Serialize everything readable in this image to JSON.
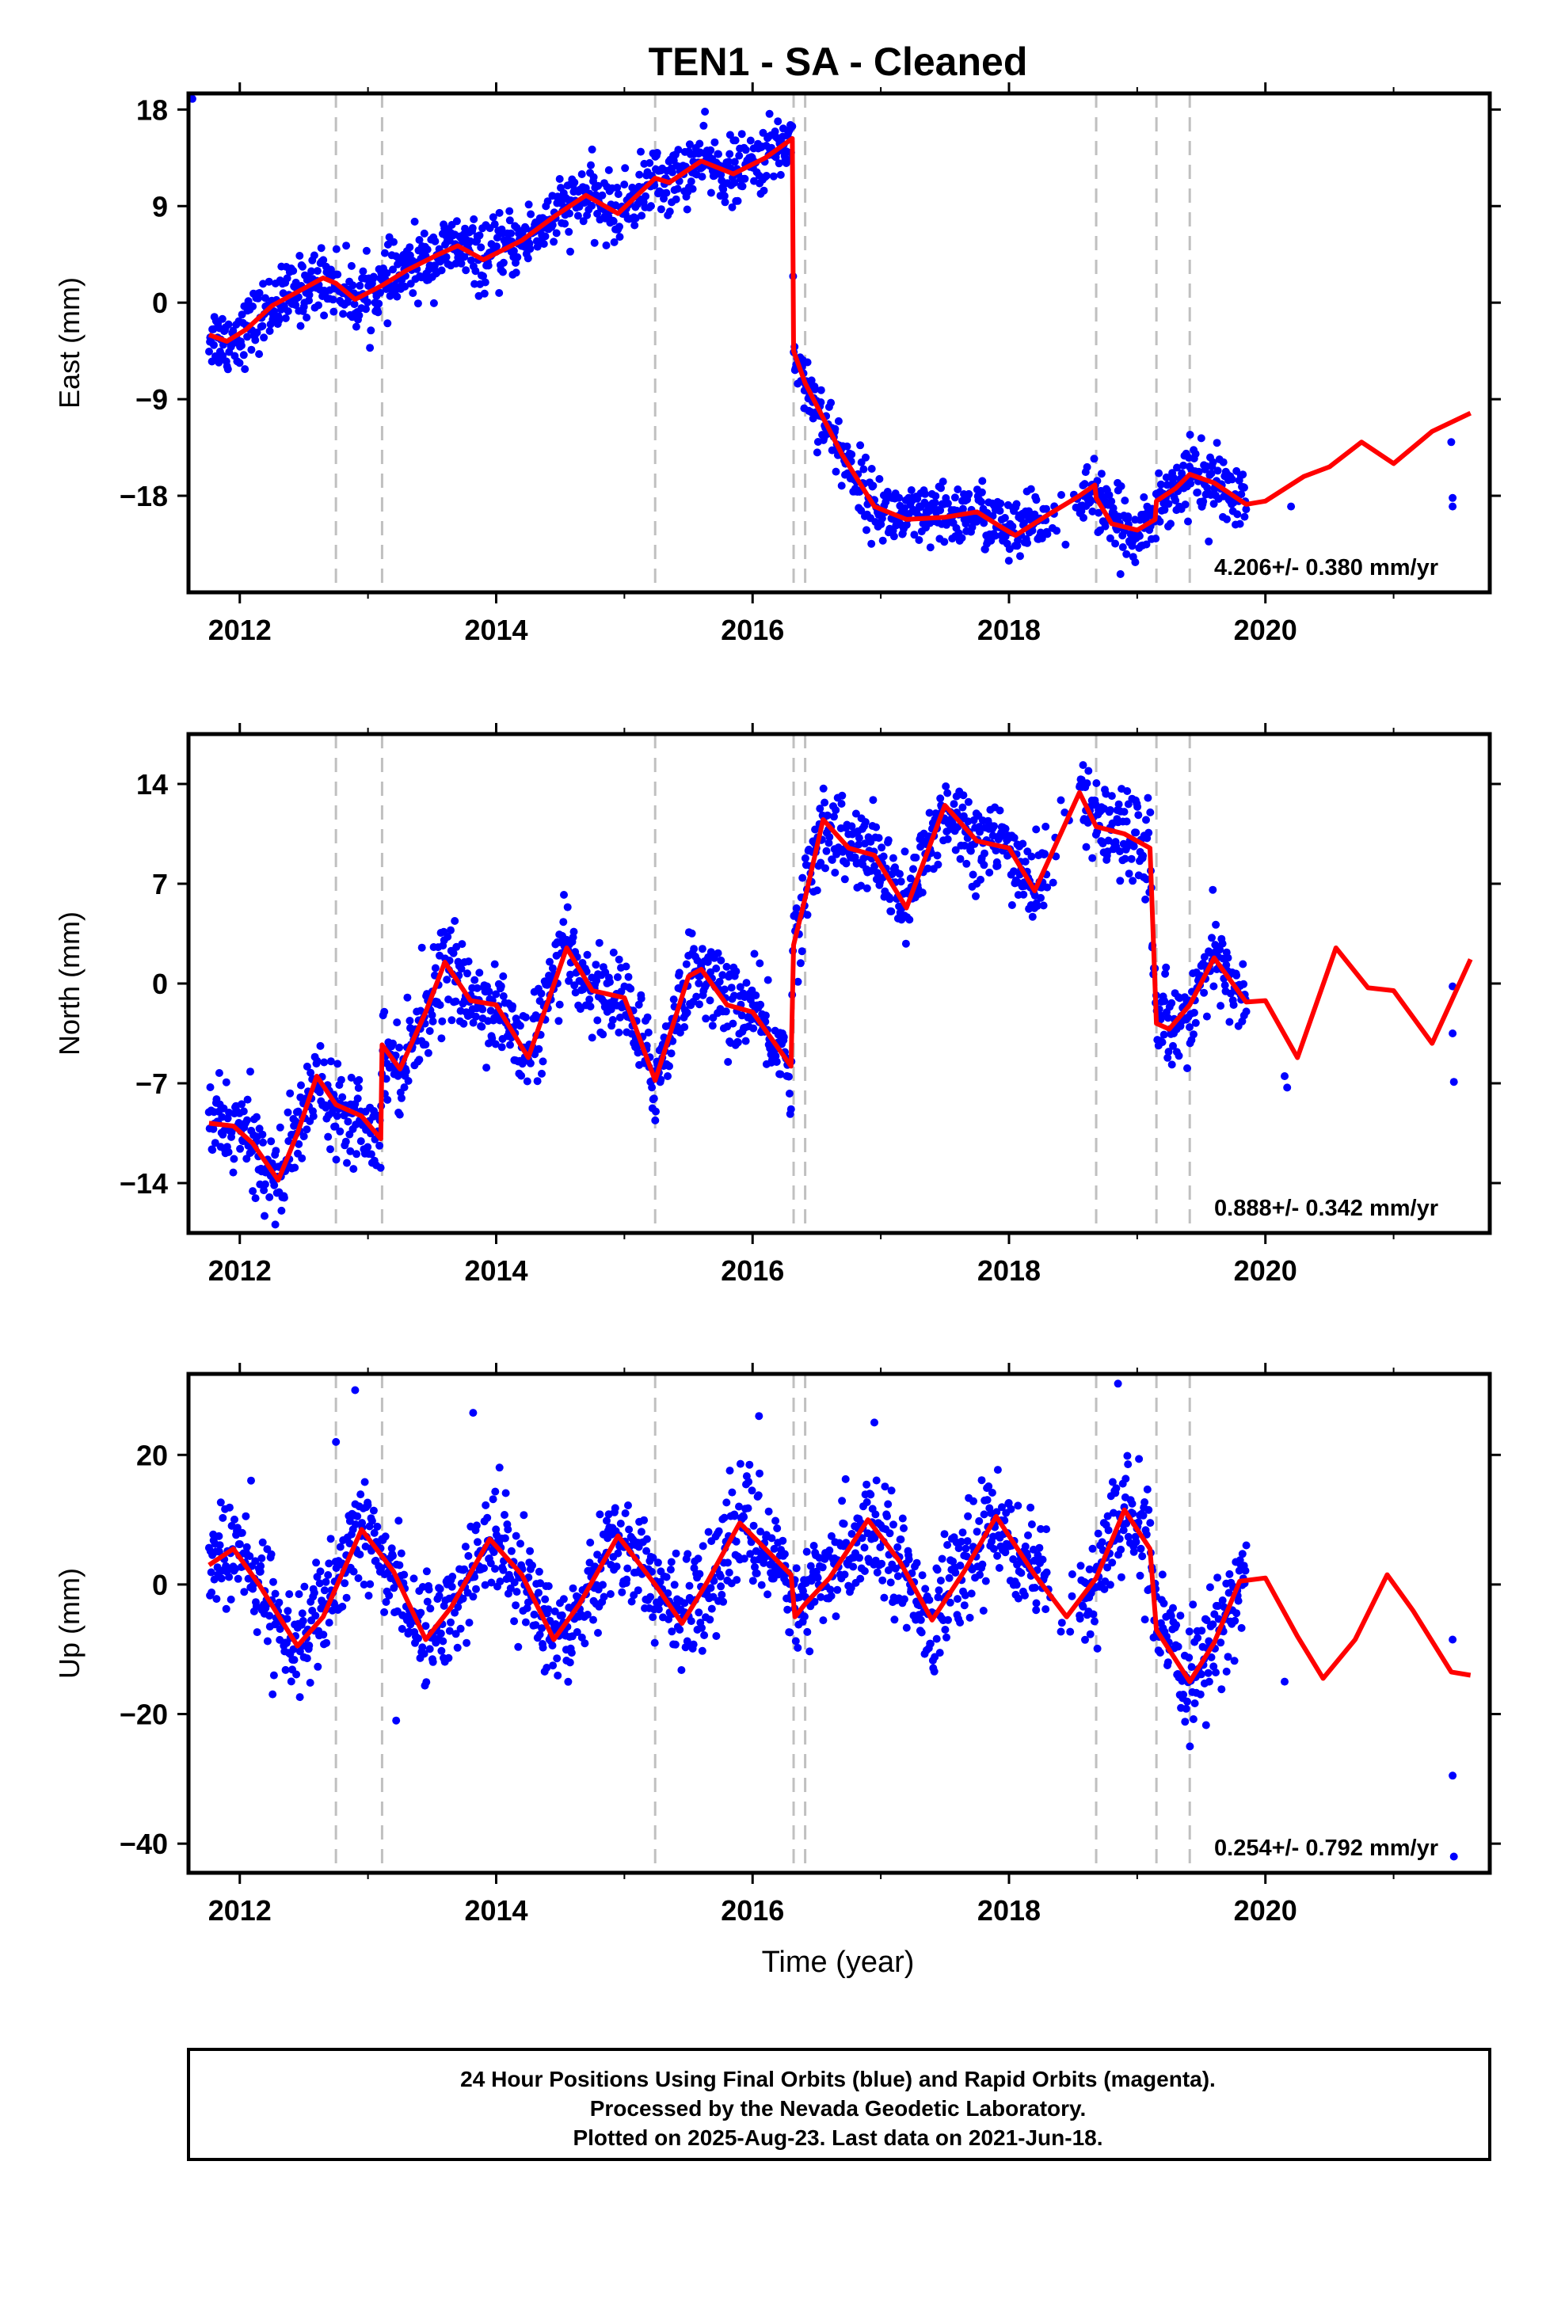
{
  "title": "TEN1  - SA - Cleaned",
  "x_label": "Time (year)",
  "x_ticks": [
    "2012",
    "2014",
    "2016",
    "2018",
    "2020"
  ],
  "colors": {
    "data": "#0000ff",
    "model": "#ff0000",
    "events": "#c0c0c0",
    "frame": "#000000"
  },
  "footer": {
    "line1": "24 Hour Positions Using Final Orbits (blue) and Rapid Orbits (magenta).",
    "line2": "Processed by the Nevada Geodetic Laboratory.",
    "line3": "Plotted on 2025-Aug-23. Last data on 2021-Jun-18."
  },
  "chart_data": [
    {
      "type": "scatter",
      "name": "East",
      "ylabel": "East (mm)",
      "xlim": [
        2011.6,
        2021.75
      ],
      "ylim": [
        -27,
        19.5
      ],
      "y_ticks": [
        "18",
        "9",
        "0",
        "-9",
        "-18"
      ],
      "rate_label": "4.206+/- 0.380 mm/yr",
      "event_lines": [
        2012.75,
        2013.11,
        2015.24,
        2016.32,
        2016.41,
        2018.68,
        2019.15,
        2019.41
      ],
      "data_span": [
        2011.76,
        2019.85
      ],
      "extra_points": [
        [
          2011.63,
          19.0
        ],
        [
          2020.2,
          -19.0
        ],
        [
          2021.45,
          -13.0
        ],
        [
          2021.46,
          -18.2
        ],
        [
          2021.46,
          -19.0
        ]
      ],
      "model": [
        [
          2011.76,
          -3.0
        ],
        [
          2011.9,
          -3.6
        ],
        [
          2012.05,
          -2.5
        ],
        [
          2012.25,
          -0.3
        ],
        [
          2012.45,
          1.0
        ],
        [
          2012.65,
          2.3
        ],
        [
          2012.75,
          1.8
        ],
        [
          2012.9,
          0.3
        ],
        [
          2013.11,
          1.6
        ],
        [
          2013.3,
          3.0
        ],
        [
          2013.55,
          4.5
        ],
        [
          2013.7,
          5.3
        ],
        [
          2013.9,
          4.0
        ],
        [
          2014.2,
          5.8
        ],
        [
          2014.45,
          8.0
        ],
        [
          2014.7,
          10.0
        ],
        [
          2014.95,
          8.3
        ],
        [
          2015.24,
          11.6
        ],
        [
          2015.35,
          11.2
        ],
        [
          2015.6,
          13.2
        ],
        [
          2015.85,
          12.0
        ],
        [
          2016.1,
          13.5
        ],
        [
          2016.31,
          15.3
        ],
        [
          2016.32,
          -4.5
        ],
        [
          2016.41,
          -7.5
        ],
        [
          2016.7,
          -14.2
        ],
        [
          2016.95,
          -19.0
        ],
        [
          2017.2,
          -20.2
        ],
        [
          2017.5,
          -20.0
        ],
        [
          2017.75,
          -19.5
        ],
        [
          2017.95,
          -21.0
        ],
        [
          2018.05,
          -21.7
        ],
        [
          2018.3,
          -19.8
        ],
        [
          2018.55,
          -18.0
        ],
        [
          2018.67,
          -17.0
        ],
        [
          2018.68,
          -18.2
        ],
        [
          2018.8,
          -20.6
        ],
        [
          2019.0,
          -21.2
        ],
        [
          2019.14,
          -20.2
        ],
        [
          2019.15,
          -18.5
        ],
        [
          2019.3,
          -17.3
        ],
        [
          2019.41,
          -16.0
        ],
        [
          2019.6,
          -16.8
        ],
        [
          2019.85,
          -18.8
        ],
        [
          2020.0,
          -18.5
        ],
        [
          2020.3,
          -16.2
        ],
        [
          2020.5,
          -15.3
        ],
        [
          2020.75,
          -13.0
        ],
        [
          2021.0,
          -15.0
        ],
        [
          2021.3,
          -12.0
        ],
        [
          2021.6,
          -10.3
        ]
      ],
      "scatter_sigma": 1.5
    },
    {
      "type": "scatter",
      "name": "North",
      "ylabel": "North (mm)",
      "xlim": [
        2011.6,
        2021.75
      ],
      "ylim": [
        -17.5,
        17.5
      ],
      "y_ticks": [
        "14",
        "7",
        "0",
        "-7",
        "-14"
      ],
      "rate_label": "0.888+/- 0.342 mm/yr",
      "event_lines": [
        2012.75,
        2013.11,
        2015.24,
        2016.32,
        2016.41,
        2018.68,
        2019.15,
        2019.41
      ],
      "data_span": [
        2011.76,
        2019.85
      ],
      "extra_points": [
        [
          2020.15,
          -6.5
        ],
        [
          2020.17,
          -7.3
        ],
        [
          2021.46,
          -0.2
        ],
        [
          2021.46,
          -3.5
        ],
        [
          2021.47,
          -6.9
        ]
      ],
      "model": [
        [
          2011.76,
          -9.8
        ],
        [
          2011.95,
          -10.0
        ],
        [
          2012.1,
          -11.2
        ],
        [
          2012.3,
          -13.8
        ],
        [
          2012.45,
          -10.5
        ],
        [
          2012.6,
          -6.5
        ],
        [
          2012.75,
          -8.5
        ],
        [
          2012.95,
          -9.3
        ],
        [
          2013.1,
          -10.9
        ],
        [
          2013.11,
          -4.3
        ],
        [
          2013.25,
          -6.0
        ],
        [
          2013.45,
          -2.0
        ],
        [
          2013.6,
          1.5
        ],
        [
          2013.8,
          -1.2
        ],
        [
          2014.0,
          -1.5
        ],
        [
          2014.25,
          -5.2
        ],
        [
          2014.55,
          2.5
        ],
        [
          2014.75,
          -0.5
        ],
        [
          2015.0,
          -1.0
        ],
        [
          2015.24,
          -6.8
        ],
        [
          2015.5,
          0.5
        ],
        [
          2015.6,
          1.0
        ],
        [
          2015.8,
          -1.5
        ],
        [
          2016.0,
          -2.0
        ],
        [
          2016.3,
          -5.8
        ],
        [
          2016.32,
          2.7
        ],
        [
          2016.41,
          6.0
        ],
        [
          2016.55,
          11.5
        ],
        [
          2016.75,
          9.5
        ],
        [
          2016.95,
          9.0
        ],
        [
          2017.2,
          5.3
        ],
        [
          2017.5,
          12.5
        ],
        [
          2017.75,
          10.0
        ],
        [
          2018.0,
          9.5
        ],
        [
          2018.2,
          6.5
        ],
        [
          2018.55,
          13.4
        ],
        [
          2018.68,
          11.0
        ],
        [
          2018.9,
          10.5
        ],
        [
          2019.1,
          9.5
        ],
        [
          2019.15,
          -2.8
        ],
        [
          2019.25,
          -3.2
        ],
        [
          2019.41,
          -1.5
        ],
        [
          2019.6,
          1.8
        ],
        [
          2019.85,
          -1.3
        ],
        [
          2020.0,
          -1.2
        ],
        [
          2020.25,
          -5.2
        ],
        [
          2020.55,
          2.5
        ],
        [
          2020.8,
          -0.3
        ],
        [
          2021.0,
          -0.5
        ],
        [
          2021.3,
          -4.2
        ],
        [
          2021.6,
          1.7
        ]
      ],
      "scatter_sigma": 1.5
    },
    {
      "type": "scatter",
      "name": "Up",
      "ylabel": "Up (mm)",
      "xlim": [
        2011.6,
        2021.75
      ],
      "ylim": [
        -44.5,
        32.5
      ],
      "y_ticks": [
        "20",
        "0",
        "-20",
        "-40"
      ],
      "rate_label": "0.254+/- 0.792 mm/yr",
      "event_lines": [
        2012.75,
        2013.11,
        2015.24,
        2016.32,
        2016.41,
        2018.68,
        2019.15,
        2019.41
      ],
      "data_span": [
        2011.76,
        2019.85
      ],
      "extra_points": [
        [
          2012.75,
          22.0
        ],
        [
          2012.9,
          30.0
        ],
        [
          2013.82,
          26.5
        ],
        [
          2013.22,
          -21.0
        ],
        [
          2016.05,
          26.0
        ],
        [
          2016.95,
          25.0
        ],
        [
          2018.85,
          31.0
        ],
        [
          2020.15,
          -15.0
        ],
        [
          2021.46,
          -8.5
        ],
        [
          2021.46,
          -29.5
        ],
        [
          2021.47,
          -42.0
        ]
      ],
      "model": [
        [
          2011.76,
          3.0
        ],
        [
          2011.95,
          5.5
        ],
        [
          2012.15,
          0.0
        ],
        [
          2012.45,
          -9.5
        ],
        [
          2012.65,
          -5.0
        ],
        [
          2012.95,
          8.5
        ],
        [
          2013.2,
          2.0
        ],
        [
          2013.45,
          -8.5
        ],
        [
          2013.65,
          -3.5
        ],
        [
          2013.95,
          7.0
        ],
        [
          2014.2,
          1.5
        ],
        [
          2014.45,
          -8.5
        ],
        [
          2014.65,
          -3.0
        ],
        [
          2014.95,
          7.5
        ],
        [
          2015.24,
          0.0
        ],
        [
          2015.45,
          -6.0
        ],
        [
          2015.65,
          0.5
        ],
        [
          2015.9,
          9.5
        ],
        [
          2016.3,
          1.5
        ],
        [
          2016.33,
          -5.0
        ],
        [
          2016.41,
          -3.0
        ],
        [
          2016.6,
          1.0
        ],
        [
          2016.9,
          10.0
        ],
        [
          2017.15,
          3.5
        ],
        [
          2017.4,
          -5.5
        ],
        [
          2017.65,
          2.0
        ],
        [
          2017.9,
          10.5
        ],
        [
          2018.2,
          1.5
        ],
        [
          2018.45,
          -5.0
        ],
        [
          2018.68,
          1.0
        ],
        [
          2018.9,
          11.5
        ],
        [
          2019.1,
          5.5
        ],
        [
          2019.15,
          -7.0
        ],
        [
          2019.41,
          -15.0
        ],
        [
          2019.6,
          -9.0
        ],
        [
          2019.8,
          0.5
        ],
        [
          2020.0,
          1.0
        ],
        [
          2020.25,
          -8.0
        ],
        [
          2020.45,
          -14.5
        ],
        [
          2020.7,
          -8.5
        ],
        [
          2020.95,
          1.5
        ],
        [
          2021.15,
          -4.0
        ],
        [
          2021.45,
          -13.5
        ],
        [
          2021.6,
          -14.0
        ]
      ],
      "scatter_sigma": 4.0
    }
  ]
}
